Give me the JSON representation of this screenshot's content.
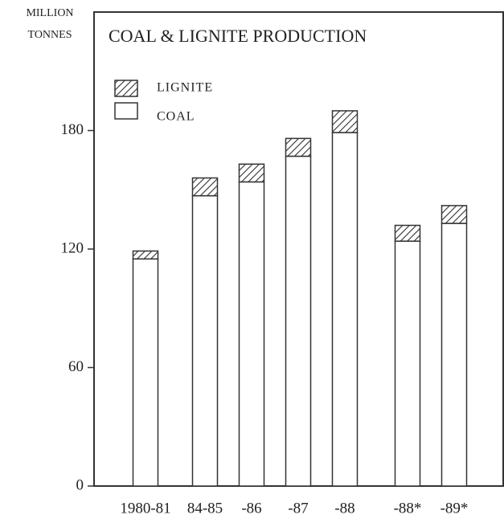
{
  "chart_data": {
    "type": "stacked_bar",
    "title": "COAL & LIGNITE  PRODUCTION",
    "y_label": [
      "MILLION",
      "TONNES"
    ],
    "categories": [
      "1980-81",
      "84-85",
      "-86",
      "-87",
      "-88",
      "-88*",
      "-89*"
    ],
    "series": [
      {
        "name": "COAL",
        "color": "#ffffff",
        "values": [
          115,
          147,
          154,
          167,
          179,
          124,
          133
        ]
      },
      {
        "name": "LIGNITE",
        "color": "#333333",
        "pattern": "hatch",
        "values": [
          4,
          9,
          9,
          9,
          11,
          8,
          9
        ]
      }
    ],
    "ylim": [
      0,
      240
    ],
    "yticks": [
      0,
      60,
      120,
      180
    ],
    "legend": "top-left"
  }
}
